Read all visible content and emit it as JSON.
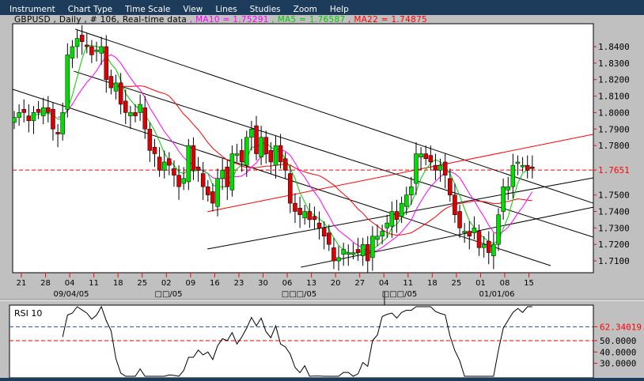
{
  "menu": [
    "Instrument",
    "Chart Type",
    "Time Scale",
    "View",
    "Lines",
    "Studies",
    "Zoom",
    "Help"
  ],
  "info": {
    "symbol": "GBPUSD",
    "period": "Daily",
    "count": "# 106",
    "feed": "Real-time data",
    "ma10": "MA10 = 1.75291",
    "ma5": "MA5 = 1.76587",
    "ma22": "MA22 = 1.74875",
    "sep": " , "
  },
  "colors": {
    "ma10": "#ff00ff",
    "ma5": "#00cc00",
    "ma22": "#ff0000",
    "up": "#00dd00",
    "down": "#dd0000",
    "menubar": "#1d3b5a"
  },
  "chart_data": {
    "type": "candlestick",
    "price_ticks": [
      "1.8400",
      "1.8300",
      "1.8200",
      "1.8100",
      "1.8000",
      "1.7900",
      "1.7800",
      "1.7500",
      "1.7400",
      "1.7300",
      "1.7200",
      "1.7100"
    ],
    "current_price": "1.7651",
    "ylim": [
      1.7035,
      1.8506
    ],
    "date_ticks": [
      "21",
      "28",
      "04",
      "11",
      "18",
      "25",
      "02",
      "09",
      "16",
      "23",
      "30",
      "06",
      "13",
      "20",
      "27",
      "04",
      "11",
      "18",
      "25",
      "01",
      "08",
      "15"
    ],
    "month_labels": [
      "09/04/05",
      "□□/05",
      "□□□/05",
      "□□□/05",
      "01/01/06"
    ],
    "closes": [
      1.797,
      1.8,
      1.8,
      1.795,
      1.8,
      1.8,
      1.803,
      1.8,
      1.79,
      1.787,
      1.8,
      1.835,
      1.84,
      1.845,
      1.843,
      1.84,
      1.835,
      1.838,
      1.84,
      1.82,
      1.815,
      1.818,
      1.805,
      1.8,
      1.8,
      1.798,
      1.805,
      1.79,
      1.777,
      1.775,
      1.765,
      1.77,
      1.768,
      1.762,
      1.755,
      1.76,
      1.78,
      1.765,
      1.765,
      1.755,
      1.75,
      1.745,
      1.76,
      1.765,
      1.755,
      1.775,
      1.775,
      1.77,
      1.785,
      1.79,
      1.775,
      1.785,
      1.775,
      1.77,
      1.78,
      1.77,
      1.765,
      1.745,
      1.74,
      1.738,
      1.74,
      1.735,
      1.735,
      1.73,
      1.725,
      1.72,
      1.71,
      1.712,
      1.717,
      1.715,
      1.715,
      1.715,
      1.72,
      1.71,
      1.725,
      1.725,
      1.728,
      1.733,
      1.74,
      1.735,
      1.745,
      1.75,
      1.755,
      1.775,
      1.775,
      1.772,
      1.77,
      1.765,
      1.768,
      1.762,
      1.75,
      1.738,
      1.73,
      1.728,
      1.725,
      1.73,
      1.718,
      1.72,
      1.715,
      1.72,
      1.738,
      1.755,
      1.755,
      1.768,
      1.77,
      1.768,
      1.765,
      1.766
    ],
    "trendlines": [
      {
        "color": "#000000",
        "from": [
          12.6,
          1.8506
        ],
        "to": [
          119.6,
          1.745
        ]
      },
      {
        "color": "#000000",
        "from": [
          12.3,
          1.8251
        ],
        "to": [
          119.6,
          1.7244
        ]
      },
      {
        "color": "#000000",
        "from": [
          -0.3,
          1.8141
        ],
        "to": [
          110.8,
          1.7071
        ]
      },
      {
        "color": "#000000",
        "from": [
          39.9,
          1.7172
        ],
        "to": [
          119.6,
          1.7604
        ]
      },
      {
        "color": "#000000",
        "from": [
          59.2,
          1.7062
        ],
        "to": [
          119.6,
          1.7426
        ]
      },
      {
        "color": "#ff0000",
        "from": [
          39.9,
          1.7398
        ],
        "to": [
          119.6,
          1.7868
        ]
      }
    ],
    "rsi": {
      "label": "RSI 10",
      "current": "62.34019",
      "ticks": [
        "50.0000",
        "40.0000",
        "30.0000"
      ],
      "ylim": [
        20,
        95
      ]
    }
  }
}
